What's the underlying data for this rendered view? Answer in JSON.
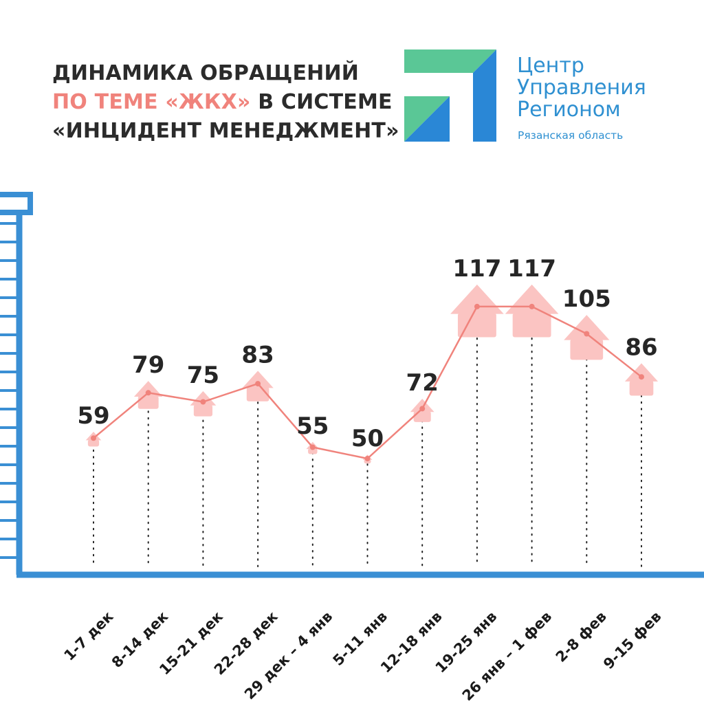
{
  "header": {
    "title_line1": "ДИНАМИКА ОБРАЩЕНИЙ",
    "title_line2_accent": "ПО ТЕМЕ «ЖКХ»",
    "title_line2_rest": " В СИСТЕМЕ",
    "title_line3": "«ИНЦИДЕНТ МЕНЕДЖМЕНТ»"
  },
  "logo": {
    "name_line1": "Центр",
    "name_line2": "Управления",
    "name_line3": "Регионом",
    "region": "Рязанская область"
  },
  "colors": {
    "title_text": "#2b2b2b",
    "title_accent": "#f0837c",
    "axis_blue": "#3a8fd4",
    "line_red": "#f0837c",
    "house_pink": "#fbc4c2",
    "logo_green": "#5ac796",
    "logo_blue": "#2a87d6"
  },
  "chart_data": {
    "type": "line",
    "title": "",
    "xlabel": "",
    "ylabel": "",
    "categories": [
      "1-7 дек",
      "8-14 дек",
      "15-21 дек",
      "22-28 дек",
      "29 дек – 4 янв",
      "5-11 янв",
      "12-18 янв",
      "19-25 янв",
      "26 янв – 1 фев",
      "2-8 фев",
      "9-15 фев"
    ],
    "series": [
      {
        "values": [
          59,
          79,
          75,
          83,
          55,
          50,
          72,
          117,
          117,
          105,
          86
        ]
      }
    ],
    "data_labels": [
      "59",
      "79",
      "75",
      "83",
      "55",
      "50",
      "72",
      "117",
      "117",
      "105",
      "86"
    ],
    "ylim": [
      0,
      160
    ],
    "marker": "house",
    "grid": false,
    "legend": "none"
  }
}
